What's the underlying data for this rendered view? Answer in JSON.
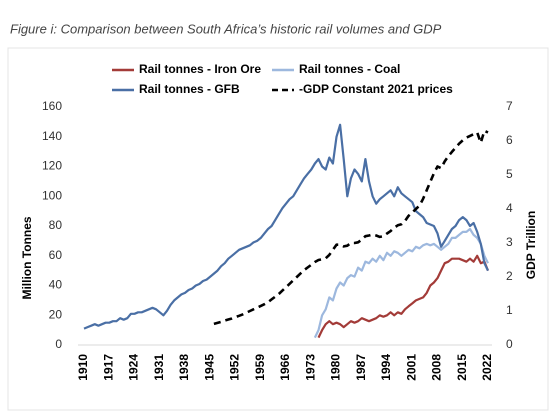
{
  "chart_data": {
    "type": "line",
    "title": "Figure i: Comparison between South Africa’s historic rail volumes and GDP",
    "ylabel": "Million Tonnes",
    "y2label": "GDP Trillion",
    "legend": "top",
    "x": [
      1910,
      1911,
      1912,
      1913,
      1914,
      1915,
      1916,
      1917,
      1918,
      1919,
      1920,
      1921,
      1922,
      1923,
      1924,
      1925,
      1926,
      1927,
      1928,
      1929,
      1930,
      1931,
      1932,
      1933,
      1934,
      1935,
      1936,
      1937,
      1938,
      1939,
      1940,
      1941,
      1942,
      1943,
      1944,
      1945,
      1946,
      1947,
      1948,
      1949,
      1950,
      1951,
      1952,
      1953,
      1954,
      1955,
      1956,
      1957,
      1958,
      1959,
      1960,
      1961,
      1962,
      1963,
      1964,
      1965,
      1966,
      1967,
      1968,
      1969,
      1970,
      1971,
      1972,
      1973,
      1974,
      1975,
      1976,
      1977,
      1978,
      1979,
      1980,
      1981,
      1982,
      1983,
      1984,
      1985,
      1986,
      1987,
      1988,
      1989,
      1990,
      1991,
      1992,
      1993,
      1994,
      1995,
      1996,
      1997,
      1998,
      1999,
      2000,
      2001,
      2002,
      2003,
      2004,
      2005,
      2006,
      2007,
      2008,
      2009,
      2010,
      2011,
      2012,
      2013,
      2014,
      2015,
      2016,
      2017,
      2018,
      2019,
      2020,
      2021,
      2022
    ],
    "xlim": [
      1910,
      2022
    ],
    "xticks": [
      1910,
      1917,
      1924,
      1931,
      1938,
      1945,
      1952,
      1959,
      1966,
      1973,
      1980,
      1987,
      1994,
      2001,
      2008,
      2015,
      2022
    ],
    "ylim": [
      0,
      160
    ],
    "yticks": [
      0,
      20,
      40,
      60,
      80,
      100,
      120,
      140,
      160
    ],
    "y2lim": [
      0,
      7
    ],
    "y2ticks": [
      0,
      1,
      2,
      3,
      4,
      5,
      6,
      7
    ],
    "series": [
      {
        "name": "Rail tonnes - Iron Ore",
        "color": "#a33b38",
        "dash": "solid",
        "values": [
          null,
          null,
          null,
          null,
          null,
          null,
          null,
          null,
          null,
          null,
          null,
          null,
          null,
          null,
          null,
          null,
          null,
          null,
          null,
          null,
          null,
          null,
          null,
          null,
          null,
          null,
          null,
          null,
          null,
          null,
          null,
          null,
          null,
          null,
          null,
          null,
          null,
          null,
          null,
          null,
          null,
          null,
          null,
          null,
          null,
          null,
          null,
          null,
          null,
          null,
          null,
          null,
          null,
          null,
          null,
          null,
          null,
          null,
          null,
          null,
          null,
          null,
          null,
          null,
          null,
          5,
          10,
          14,
          16,
          14,
          15,
          14,
          12,
          14,
          16,
          15,
          16,
          18,
          17,
          16,
          17,
          18,
          20,
          19,
          20,
          22,
          20,
          22,
          21,
          24,
          26,
          28,
          30,
          31,
          32,
          35,
          40,
          42,
          45,
          50,
          55,
          56,
          58,
          58,
          58,
          57,
          56,
          58,
          56,
          60,
          55,
          56,
          50
        ]
      },
      {
        "name": "Rail tonnes - Coal",
        "color": "#9db8de",
        "dash": "solid",
        "values": [
          null,
          null,
          null,
          null,
          null,
          null,
          null,
          null,
          null,
          null,
          null,
          null,
          null,
          null,
          null,
          null,
          null,
          null,
          null,
          null,
          null,
          null,
          null,
          null,
          null,
          null,
          null,
          null,
          null,
          null,
          null,
          null,
          null,
          null,
          null,
          null,
          null,
          null,
          null,
          null,
          null,
          null,
          null,
          null,
          null,
          null,
          null,
          null,
          null,
          null,
          null,
          null,
          null,
          null,
          null,
          null,
          null,
          null,
          null,
          null,
          null,
          null,
          null,
          null,
          5,
          10,
          20,
          24,
          32,
          30,
          38,
          42,
          40,
          45,
          47,
          46,
          52,
          50,
          56,
          55,
          58,
          56,
          60,
          57,
          62,
          60,
          63,
          62,
          60,
          62,
          64,
          63,
          66,
          65,
          67,
          68,
          67,
          68,
          66,
          64,
          66,
          68,
          72,
          72,
          74,
          76,
          76,
          78,
          74,
          72,
          68,
          60,
          55
        ]
      },
      {
        "name": "Rail tonnes - GFB",
        "color": "#4a6fa5",
        "dash": "solid",
        "values": [
          11,
          12,
          13,
          14,
          13,
          14,
          15,
          15,
          16,
          16,
          18,
          17,
          18,
          21,
          21,
          22,
          22,
          23,
          24,
          25,
          24,
          22,
          20,
          23,
          27,
          30,
          32,
          34,
          35,
          37,
          38,
          40,
          41,
          43,
          44,
          46,
          48,
          50,
          53,
          55,
          58,
          60,
          62,
          64,
          65,
          66,
          67,
          69,
          70,
          72,
          75,
          78,
          80,
          84,
          88,
          92,
          95,
          98,
          100,
          104,
          108,
          112,
          115,
          118,
          122,
          125,
          120,
          118,
          126,
          122,
          140,
          148,
          125,
          100,
          112,
          118,
          115,
          110,
          125,
          110,
          100,
          95,
          98,
          100,
          102,
          104,
          100,
          106,
          102,
          100,
          98,
          96,
          90,
          88,
          86,
          82,
          81,
          80,
          75,
          66,
          70,
          74,
          78,
          80,
          84,
          86,
          84,
          80,
          82,
          76,
          68,
          55,
          50
        ]
      },
      {
        "name": "-GDP Constant 2021 prices",
        "color": "#000000",
        "dash": "dashed",
        "axis": "y2",
        "values": [
          null,
          null,
          null,
          null,
          null,
          null,
          null,
          null,
          null,
          null,
          null,
          null,
          null,
          null,
          null,
          null,
          null,
          null,
          null,
          null,
          null,
          null,
          null,
          null,
          null,
          null,
          null,
          null,
          null,
          null,
          null,
          null,
          null,
          null,
          null,
          null,
          0.62,
          0.65,
          0.68,
          0.72,
          0.75,
          0.78,
          0.82,
          0.86,
          0.9,
          0.95,
          1.0,
          1.05,
          1.1,
          1.15,
          1.2,
          1.26,
          1.34,
          1.42,
          1.5,
          1.6,
          1.7,
          1.8,
          1.9,
          2.0,
          2.1,
          2.2,
          2.28,
          2.36,
          2.44,
          2.5,
          2.52,
          2.55,
          2.65,
          2.8,
          2.95,
          2.95,
          2.9,
          2.92,
          3.0,
          3.0,
          3.02,
          3.1,
          3.2,
          3.22,
          3.25,
          3.22,
          3.18,
          3.2,
          3.28,
          3.35,
          3.45,
          3.52,
          3.55,
          3.65,
          3.8,
          3.9,
          4.0,
          4.1,
          4.3,
          4.55,
          4.8,
          5.05,
          5.25,
          5.2,
          5.4,
          5.55,
          5.68,
          5.8,
          5.92,
          6.02,
          6.1,
          6.15,
          6.2,
          6.25,
          5.95,
          6.3,
          6.25
        ]
      }
    ]
  }
}
